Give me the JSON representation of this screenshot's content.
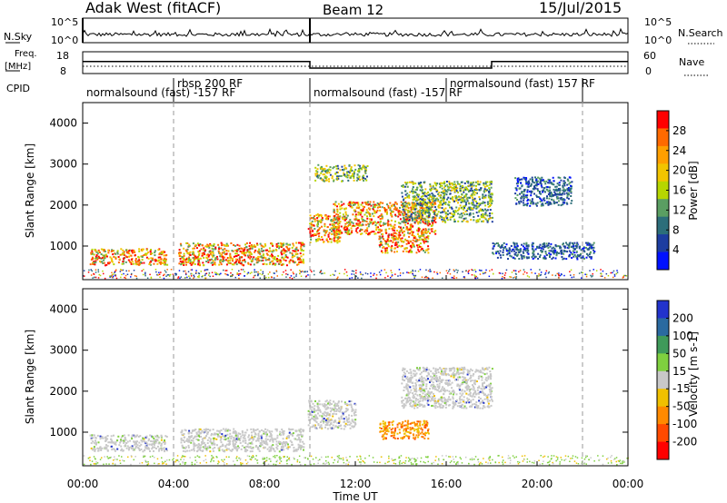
{
  "header": {
    "station": "Adak West (fitACF)",
    "beam": "Beam 12",
    "date": "15/Jul/2015"
  },
  "noise_panel": {
    "left_label": "N.Sky",
    "right_label": "N.Search",
    "left_ticks": [
      "10^5",
      "10^0"
    ],
    "right_ticks": [
      "10^5",
      "10^0"
    ]
  },
  "freq_panel": {
    "left_label_1": "Freq.",
    "left_label_2": "[MHz]",
    "right_label": "Nave",
    "left_ticks": [
      "18",
      "8"
    ],
    "right_ticks": [
      "60",
      "0"
    ]
  },
  "cpid_panel": {
    "label": "CPID",
    "segments": [
      {
        "name": "normalsound (fast) -157 RF",
        "start": 0,
        "end": 4
      },
      {
        "name": "rbsp 200 RF",
        "start": 4,
        "end": 10
      },
      {
        "name": "normalsound (fast) -157 RF",
        "start": 10,
        "end": 16
      },
      {
        "name": "normalsound (fast) 157 RF",
        "start": 16,
        "end": 22
      }
    ]
  },
  "power_panel": {
    "ylabel": "Slant Range [km]",
    "colorbar_label": "Power [dB]",
    "colorbar_ticks": [
      "28",
      "24",
      "20",
      "16",
      "12",
      "8",
      "4"
    ],
    "colorbar_colors": [
      "#ff0000",
      "#ff6a00",
      "#ff9f00",
      "#f2c400",
      "#b6d600",
      "#5a9e62",
      "#2c6e7a",
      "#1d3da0",
      "#0011ff"
    ]
  },
  "velocity_panel": {
    "ylabel": "Slant Range [km]",
    "colorbar_label": "Velocity [m s-1]",
    "colorbar_ticks": [
      "200",
      "100",
      "50",
      "15",
      "-15",
      "-50",
      "-100",
      "-200"
    ],
    "colorbar_colors": [
      "#2233cc",
      "#2a6aa0",
      "#3f9a5a",
      "#7fd03f",
      "#c8c8c8",
      "#f0c000",
      "#ff8a00",
      "#ff4a00",
      "#ff0000"
    ]
  },
  "xaxis": {
    "label": "Time UT",
    "ticks": [
      "00:00",
      "04:00",
      "08:00",
      "12:00",
      "16:00",
      "20:00",
      "00:00"
    ]
  },
  "yticks": [
    "4000",
    "3000",
    "2000",
    "1000"
  ],
  "chart_data": {
    "type": "heatmap",
    "title": "Adak West (fitACF)   Beam 12   15/Jul/2015",
    "xlabel": "Time UT",
    "ylabel": "Slant Range [km]",
    "xlim": [
      0,
      24
    ],
    "ylim": [
      180,
      4500
    ],
    "frequency_mhz": [
      {
        "start": 0,
        "end": 10,
        "value": 13.5
      },
      {
        "start": 10,
        "end": 18,
        "value": 10.5
      },
      {
        "start": 18,
        "end": 24,
        "value": 13.5
      }
    ],
    "power_features": [
      {
        "t0": 0.3,
        "t1": 3.7,
        "r0": 550,
        "r1": 950,
        "level": "high"
      },
      {
        "t0": 4.2,
        "t1": 9.7,
        "r0": 550,
        "r1": 1100,
        "level": "high"
      },
      {
        "t0": 9.9,
        "t1": 11.3,
        "r0": 1100,
        "r1": 1800,
        "level": "high"
      },
      {
        "t0": 10.2,
        "t1": 12.5,
        "r0": 2600,
        "r1": 3000,
        "level": "medium"
      },
      {
        "t0": 11.0,
        "t1": 15.5,
        "r0": 1300,
        "r1": 2100,
        "level": "high"
      },
      {
        "t0": 13.0,
        "t1": 15.2,
        "r0": 850,
        "r1": 1300,
        "level": "high"
      },
      {
        "t0": 14.0,
        "t1": 18.0,
        "r0": 1600,
        "r1": 2600,
        "level": "medium"
      },
      {
        "t0": 19.0,
        "t1": 21.5,
        "r0": 2000,
        "r1": 2700,
        "level": "low"
      },
      {
        "t0": 18.0,
        "t1": 22.5,
        "r0": 700,
        "r1": 1100,
        "level": "low"
      }
    ],
    "velocity_features": [
      {
        "t0": 0.3,
        "t1": 3.7,
        "r0": 550,
        "r1": 950,
        "velocity": 0
      },
      {
        "t0": 4.2,
        "t1": 9.7,
        "r0": 550,
        "r1": 1100,
        "velocity": 0
      },
      {
        "t0": 9.9,
        "t1": 12.0,
        "r0": 1100,
        "r1": 1800,
        "velocity": 0
      },
      {
        "t0": 13.0,
        "t1": 15.2,
        "r0": 850,
        "r1": 1300,
        "velocity": -60
      },
      {
        "t0": 14.0,
        "t1": 18.0,
        "r0": 1600,
        "r1": 2600,
        "velocity": 0
      }
    ]
  }
}
